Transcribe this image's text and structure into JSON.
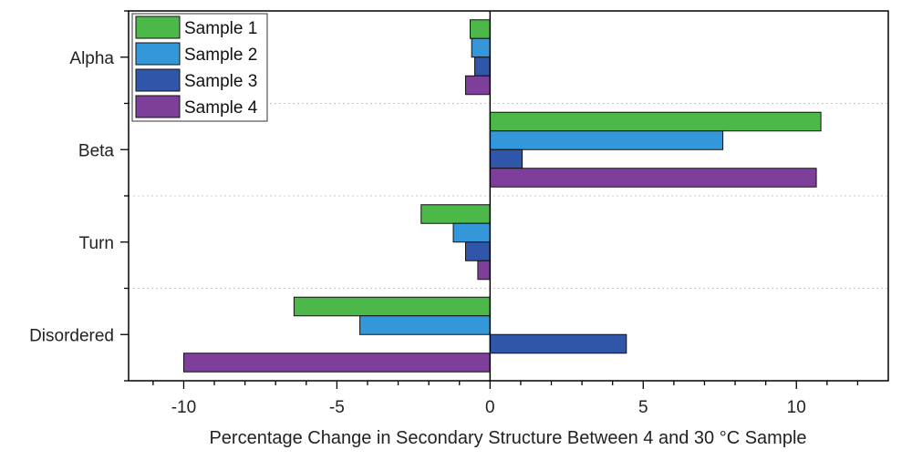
{
  "chart_data": {
    "type": "bar",
    "orientation": "horizontal",
    "categories": [
      "Alpha",
      "Beta",
      "Turn",
      "Disordered"
    ],
    "series": [
      {
        "name": "Sample 1",
        "color": "#4cb84a",
        "values": [
          -0.65,
          10.8,
          -2.25,
          -6.4
        ]
      },
      {
        "name": "Sample 2",
        "color": "#3497d9",
        "values": [
          -0.6,
          7.6,
          -1.2,
          -4.25
        ]
      },
      {
        "name": "Sample 3",
        "color": "#2f56a8",
        "values": [
          -0.5,
          1.05,
          -0.8,
          4.45
        ]
      },
      {
        "name": "Sample 4",
        "color": "#7e3f9b",
        "values": [
          -0.8,
          10.65,
          -0.4,
          -10.0
        ]
      }
    ],
    "xlabel": "Percentage Change in Secondary Structure Between 4 and 30 °C Sample",
    "xlim": [
      -11.8,
      13
    ],
    "x_ticks": [
      "-10",
      "-5",
      "0",
      "5",
      "10"
    ],
    "x_tick_values": [
      -10,
      -5,
      0,
      5,
      10
    ],
    "grid": "horizontal dotted separators between categories",
    "legend_position": "top-left"
  }
}
